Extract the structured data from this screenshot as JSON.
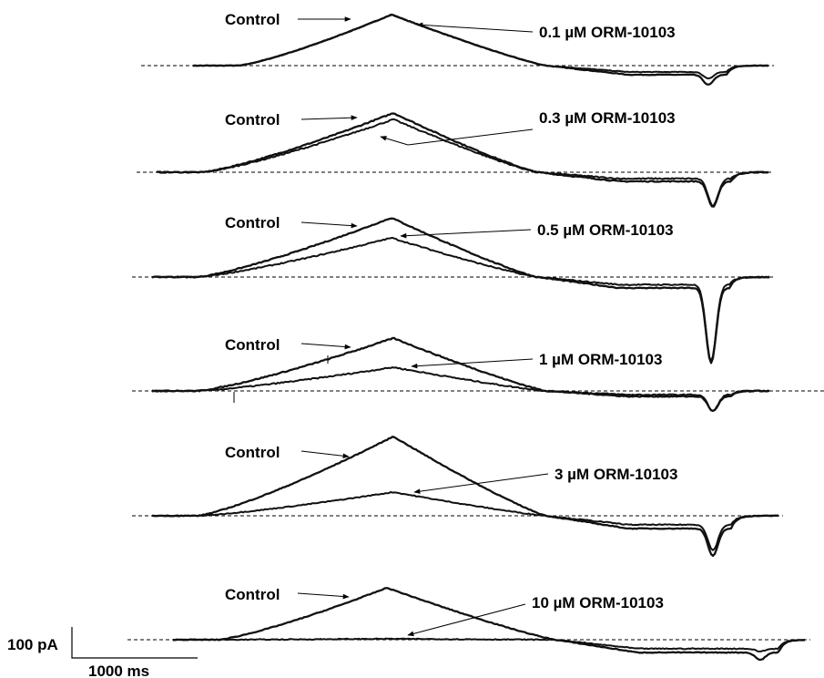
{
  "chart_data": {
    "type": "line",
    "panels": [
      {
        "control_label": "Control",
        "drug_label": "0.1 µM ORM-10103",
        "control_peak": 56,
        "drug_peak": 56,
        "drug_dip": 7,
        "ctrl_dip": 11
      },
      {
        "control_label": "Control",
        "drug_label": "0.3 µM ORM-10103",
        "control_peak": 65,
        "drug_peak": 58,
        "drug_dip": 30,
        "ctrl_dip": 28
      },
      {
        "control_label": "Control",
        "drug_label": "0.5 µM ORM-10103",
        "control_peak": 65,
        "drug_peak": 43,
        "drug_dip": 84,
        "ctrl_dip": 82
      },
      {
        "control_label": "Control",
        "drug_label": "1 µM ORM-10103",
        "control_peak": 58,
        "drug_peak": 26,
        "drug_dip": 18,
        "ctrl_dip": 16
      },
      {
        "control_label": "Control",
        "drug_label": "3 µM ORM-10103",
        "control_peak": 87,
        "drug_peak": 26,
        "drug_dip": 28,
        "ctrl_dip": 30
      },
      {
        "control_label": "Control",
        "drug_label": "10 µM ORM-10103",
        "control_peak": 57,
        "drug_peak": 1,
        "drug_dip": 3,
        "ctrl_dip": 8
      }
    ],
    "scale_bar": {
      "current_label": "100 pA",
      "current_pA": 100,
      "time_label": "1000 ms",
      "time_ms": 1000
    }
  }
}
